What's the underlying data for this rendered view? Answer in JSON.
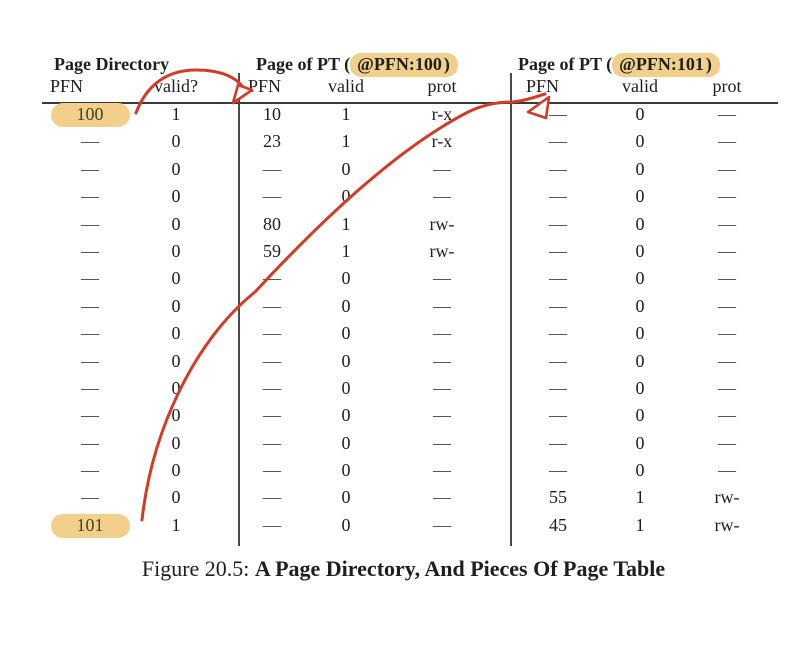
{
  "colors": {
    "highlight": "#f2d08c",
    "arrow": "#d23b25"
  },
  "page_directory": {
    "title": "Page Directory",
    "columns": [
      "PFN",
      "valid?"
    ],
    "rows": [
      {
        "pfn": "100",
        "valid": "1",
        "highlight": true
      },
      {
        "pfn": "—",
        "valid": "0"
      },
      {
        "pfn": "—",
        "valid": "0"
      },
      {
        "pfn": "—",
        "valid": "0"
      },
      {
        "pfn": "—",
        "valid": "0"
      },
      {
        "pfn": "—",
        "valid": "0"
      },
      {
        "pfn": "—",
        "valid": "0"
      },
      {
        "pfn": "—",
        "valid": "0"
      },
      {
        "pfn": "—",
        "valid": "0"
      },
      {
        "pfn": "—",
        "valid": "0"
      },
      {
        "pfn": "—",
        "valid": "0"
      },
      {
        "pfn": "—",
        "valid": "0"
      },
      {
        "pfn": "—",
        "valid": "0"
      },
      {
        "pfn": "—",
        "valid": "0"
      },
      {
        "pfn": "—",
        "valid": "0"
      },
      {
        "pfn": "101",
        "valid": "1",
        "highlight": true
      }
    ]
  },
  "pt100": {
    "title_prefix": "Page of PT (",
    "title_highlight": "@PFN:100",
    "title_suffix": ")",
    "columns": [
      "PFN",
      "valid",
      "prot"
    ],
    "rows": [
      {
        "pfn": "10",
        "valid": "1",
        "prot": "r-x"
      },
      {
        "pfn": "23",
        "valid": "1",
        "prot": "r-x"
      },
      {
        "pfn": "—",
        "valid": "0",
        "prot": "—"
      },
      {
        "pfn": "—",
        "valid": "0",
        "prot": "—"
      },
      {
        "pfn": "80",
        "valid": "1",
        "prot": "rw-"
      },
      {
        "pfn": "59",
        "valid": "1",
        "prot": "rw-"
      },
      {
        "pfn": "—",
        "valid": "0",
        "prot": "—"
      },
      {
        "pfn": "—",
        "valid": "0",
        "prot": "—"
      },
      {
        "pfn": "—",
        "valid": "0",
        "prot": "—"
      },
      {
        "pfn": "—",
        "valid": "0",
        "prot": "—"
      },
      {
        "pfn": "—",
        "valid": "0",
        "prot": "—"
      },
      {
        "pfn": "—",
        "valid": "0",
        "prot": "—"
      },
      {
        "pfn": "—",
        "valid": "0",
        "prot": "—"
      },
      {
        "pfn": "—",
        "valid": "0",
        "prot": "—"
      },
      {
        "pfn": "—",
        "valid": "0",
        "prot": "—"
      },
      {
        "pfn": "—",
        "valid": "0",
        "prot": "—"
      }
    ]
  },
  "pt101": {
    "title_prefix": "Page of PT (",
    "title_highlight": "@PFN:101",
    "title_suffix": ")",
    "columns": [
      "PFN",
      "valid",
      "prot"
    ],
    "rows": [
      {
        "pfn": "—",
        "valid": "0",
        "prot": "—"
      },
      {
        "pfn": "—",
        "valid": "0",
        "prot": "—"
      },
      {
        "pfn": "—",
        "valid": "0",
        "prot": "—"
      },
      {
        "pfn": "—",
        "valid": "0",
        "prot": "—"
      },
      {
        "pfn": "—",
        "valid": "0",
        "prot": "—"
      },
      {
        "pfn": "—",
        "valid": "0",
        "prot": "—"
      },
      {
        "pfn": "—",
        "valid": "0",
        "prot": "—"
      },
      {
        "pfn": "—",
        "valid": "0",
        "prot": "—"
      },
      {
        "pfn": "—",
        "valid": "0",
        "prot": "—"
      },
      {
        "pfn": "—",
        "valid": "0",
        "prot": "—"
      },
      {
        "pfn": "—",
        "valid": "0",
        "prot": "—"
      },
      {
        "pfn": "—",
        "valid": "0",
        "prot": "—"
      },
      {
        "pfn": "—",
        "valid": "0",
        "prot": "—"
      },
      {
        "pfn": "—",
        "valid": "0",
        "prot": "—"
      },
      {
        "pfn": "55",
        "valid": "1",
        "prot": "rw-"
      },
      {
        "pfn": "45",
        "valid": "1",
        "prot": "rw-"
      }
    ]
  },
  "figure": {
    "caption_prefix": "Figure 20.5:",
    "caption_label": "A Page Directory, And Pieces Of Page Table"
  }
}
